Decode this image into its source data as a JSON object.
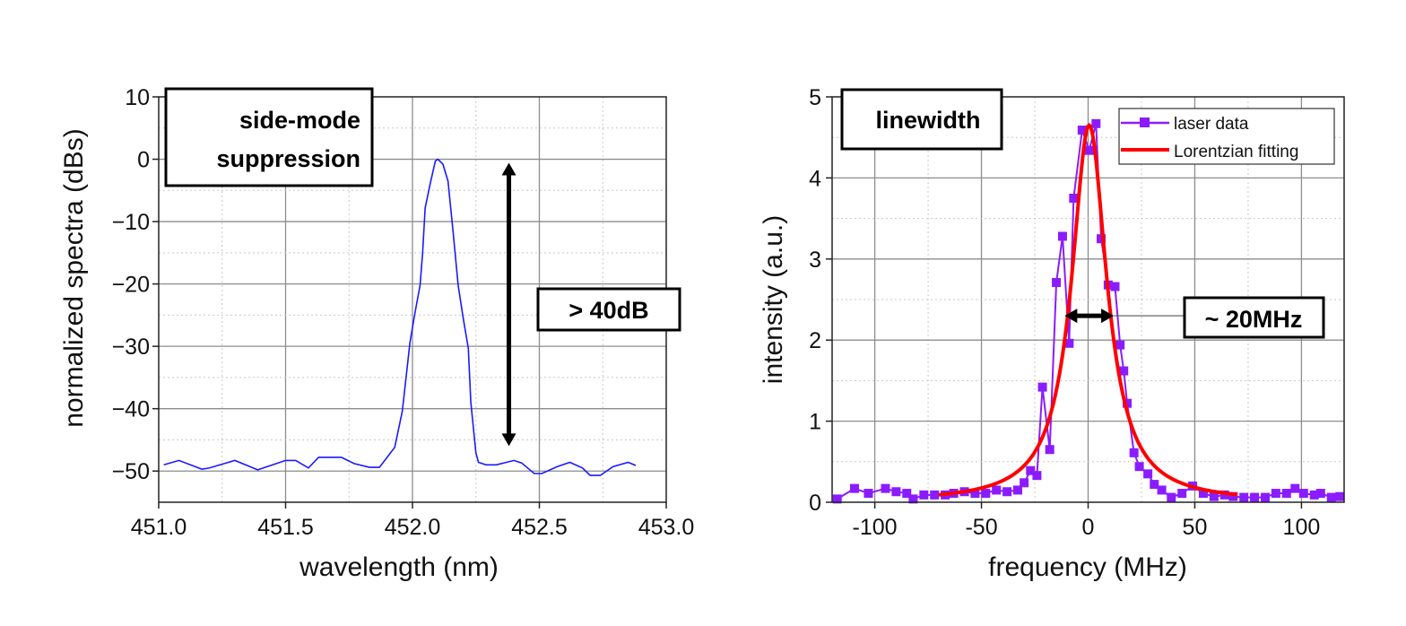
{
  "chart_data": [
    {
      "type": "line",
      "xlabel": "wavelength (nm)",
      "ylabel": "normalized spectra (dBs)",
      "xlim": [
        451.0,
        453.0
      ],
      "ylim": [
        -55,
        10
      ],
      "xticks": [
        "451.0",
        "451.5",
        "452.0",
        "452.5",
        "453.0"
      ],
      "yticks": [
        "10",
        "0",
        "−10",
        "−20",
        "−30",
        "−40",
        "−50"
      ],
      "grid": true,
      "annotations": {
        "title_box": [
          "side-mode",
          "suppression"
        ],
        "arrow_label": "> 40dB",
        "arrow_range_db": [
          0,
          -46
        ],
        "arrow_x": 452.38
      },
      "series": [
        {
          "color": "#1a1aff",
          "x": [
            451.02,
            451.08,
            451.17,
            451.2,
            451.3,
            451.39,
            451.5,
            451.54,
            451.59,
            451.63,
            451.72,
            451.77,
            451.83,
            451.87,
            451.93,
            451.96,
            451.99,
            452.01,
            452.03,
            452.04,
            452.05,
            452.07,
            452.09,
            452.1,
            452.12,
            452.14,
            452.16,
            452.18,
            452.2,
            452.22,
            452.23,
            452.25,
            452.26,
            452.29,
            452.33,
            452.4,
            452.43,
            452.48,
            452.51,
            452.57,
            452.62,
            452.67,
            452.7,
            452.74,
            452.79,
            452.85,
            452.88
          ],
          "y": [
            -49.0,
            -48.3,
            -49.7,
            -49.5,
            -48.3,
            -49.8,
            -48.3,
            -48.3,
            -49.5,
            -47.8,
            -47.8,
            -48.8,
            -49.4,
            -49.4,
            -46.2,
            -40.4,
            -29.4,
            -24.6,
            -20.2,
            -15.0,
            -7.8,
            -3.9,
            -0.3,
            0,
            -0.8,
            -3.5,
            -11.6,
            -20.2,
            -25.5,
            -30.3,
            -39.0,
            -47.1,
            -48.6,
            -49.0,
            -49.0,
            -48.3,
            -48.7,
            -50.4,
            -50.4,
            -49.3,
            -48.6,
            -49.5,
            -50.7,
            -50.7,
            -49.3,
            -48.6,
            -49.1
          ]
        }
      ]
    },
    {
      "type": "line",
      "xlabel": "frequency (MHz)",
      "ylabel": "intensity (a.u.)",
      "xlim": [
        -120,
        120
      ],
      "ylim": [
        0,
        5
      ],
      "xticks": [
        "-100",
        "-50",
        "0",
        "50",
        "100"
      ],
      "xtick_values": [
        -100,
        -50,
        0,
        50,
        100
      ],
      "yticks": [
        "0",
        "1",
        "2",
        "3",
        "4",
        "5"
      ],
      "grid": true,
      "legend_position": "top-right",
      "annotations": {
        "title_box": "linewidth",
        "arrow_label": "~ 20MHz",
        "arrow_range_mhz": [
          -11,
          12
        ],
        "arrow_y": 2.3
      },
      "series": [
        {
          "name": "laser data",
          "color": "#8a1cff",
          "marker": "square",
          "x": [
            -117.6,
            -109.5,
            -103,
            -95,
            -90,
            -85,
            -82,
            -77,
            -72,
            -67,
            -63,
            -58,
            -53,
            -48,
            -43,
            -38,
            -33,
            -30,
            -27,
            -24,
            -21.4,
            -18,
            -14.9,
            -12,
            -8.9,
            -6.8,
            -2.8,
            0.5,
            3.7,
            6.1,
            9.4,
            12.6,
            15,
            16.7,
            18.3,
            21.5,
            24,
            28,
            31,
            34.5,
            39,
            44,
            49,
            54,
            59,
            64,
            68,
            73,
            78,
            83,
            88,
            93,
            97,
            101,
            106,
            109,
            114,
            118
          ],
          "y": [
            0.04,
            0.17,
            0.11,
            0.17,
            0.13,
            0.11,
            0.04,
            0.09,
            0.09,
            0.09,
            0.11,
            0.13,
            0.11,
            0.11,
            0.15,
            0.13,
            0.15,
            0.24,
            0.39,
            0.33,
            1.42,
            0.65,
            2.71,
            3.28,
            1.96,
            3.75,
            4.59,
            4.34,
            4.67,
            3.25,
            2.68,
            2.66,
            1.94,
            1.62,
            1.22,
            0.61,
            0.44,
            0.35,
            0.22,
            0.15,
            0.06,
            0.11,
            0.2,
            0.11,
            0.07,
            0.09,
            0.07,
            0.06,
            0.06,
            0.06,
            0.11,
            0.11,
            0.17,
            0.11,
            0.09,
            0.11,
            0.06,
            0.07
          ]
        },
        {
          "name": "Lorentzian fitting",
          "color": "#ff0000",
          "model": "Lorentzian",
          "amplitude": 4.65,
          "center": 0.5,
          "fwhm": 20,
          "x_range": [
            -70,
            70
          ]
        }
      ]
    }
  ]
}
